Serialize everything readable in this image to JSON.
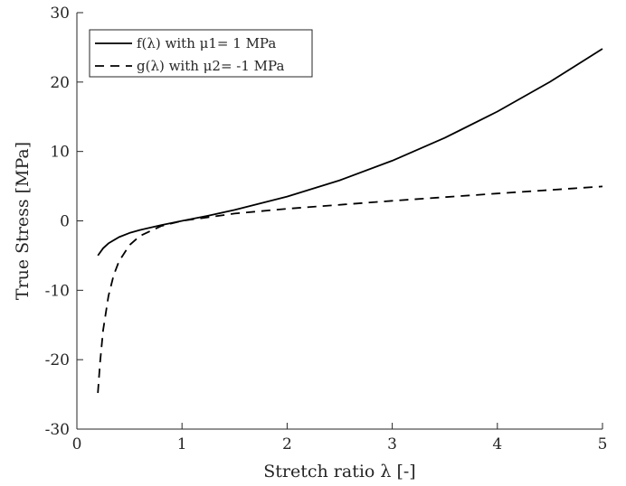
{
  "chart_data": {
    "type": "line",
    "xlabel": "Stretch ratio λ [-]",
    "ylabel": "True Stress [MPa]",
    "xlim": [
      0,
      5
    ],
    "ylim": [
      -30,
      30
    ],
    "x_ticks": [
      "0",
      "1",
      "2",
      "3",
      "4",
      "5"
    ],
    "y_ticks": [
      "-30",
      "-20",
      "-10",
      "0",
      "10",
      "20",
      "30"
    ],
    "grid": false,
    "legend_position": "top-left",
    "series": [
      {
        "name": "f(λ) with μ1= 1 MPa",
        "line_style": "solid",
        "color": "#000000",
        "x": [
          0.2,
          0.25,
          0.3,
          0.4,
          0.5,
          0.6,
          0.8,
          1.0,
          1.25,
          1.5,
          2.0,
          2.5,
          3.0,
          3.5,
          4.0,
          4.5,
          5.0
        ],
        "y": [
          -5.0,
          -3.94,
          -3.24,
          -2.34,
          -1.75,
          -1.31,
          -0.61,
          0.0,
          0.76,
          1.58,
          3.5,
          5.85,
          8.67,
          11.96,
          15.75,
          20.03,
          24.8
        ]
      },
      {
        "name": "g(λ) with μ2= -1 MPa",
        "line_style": "dashed",
        "color": "#000000",
        "x": [
          0.2,
          0.22,
          0.25,
          0.3,
          0.35,
          0.4,
          0.5,
          0.6,
          0.8,
          1.0,
          1.5,
          2.0,
          3.0,
          4.0,
          5.0
        ],
        "y": [
          -24.8,
          -20.44,
          -15.75,
          -10.81,
          -7.81,
          -5.85,
          -3.5,
          -2.18,
          -0.76,
          0.0,
          1.06,
          1.75,
          2.89,
          3.94,
          4.96
        ]
      }
    ]
  }
}
